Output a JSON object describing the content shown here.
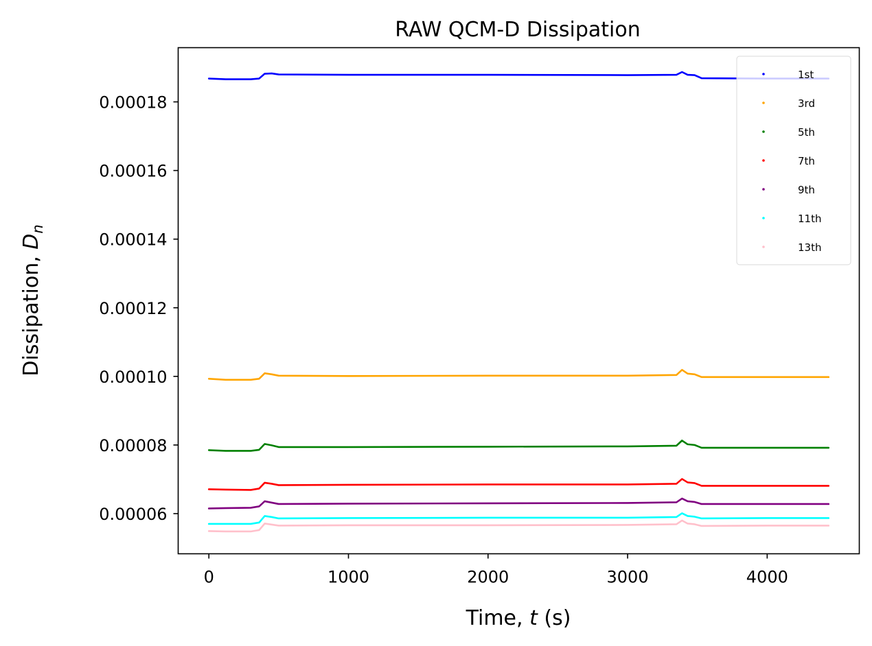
{
  "chart_data": {
    "type": "scatter",
    "title": "RAW QCM-D Dissipation",
    "xlabel": {
      "pre": "Time, ",
      "var": "t",
      "post": " (s)"
    },
    "ylabel": {
      "pre": "Dissipation, ",
      "var": "D",
      "sub": "n"
    },
    "xlim": [
      -220,
      4660
    ],
    "ylim": [
      4.83e-05,
      0.0001958
    ],
    "xticks": [
      0,
      1000,
      2000,
      3000,
      4000
    ],
    "xtick_labels": [
      "0",
      "1000",
      "2000",
      "3000",
      "4000"
    ],
    "yticks": [
      6e-05,
      8e-05,
      0.0001,
      0.00012,
      0.00014,
      0.00016,
      0.00018
    ],
    "ytick_labels": [
      "0.00006",
      "0.00008",
      "0.00010",
      "0.00012",
      "0.00014",
      "0.00016",
      "0.00018"
    ],
    "grid": false,
    "legend_position": "top-right",
    "series": [
      {
        "name": "1st",
        "color": "#0000ff",
        "x": [
          0,
          120,
          300,
          360,
          400,
          450,
          500,
          1000,
          2000,
          3000,
          3350,
          3390,
          3430,
          3480,
          3530,
          4000,
          4440
        ],
        "y": [
          0.0001868,
          0.0001866,
          0.0001866,
          0.0001868,
          0.0001882,
          0.0001883,
          0.000188,
          0.0001879,
          0.0001879,
          0.0001878,
          0.0001879,
          0.0001887,
          0.0001879,
          0.0001878,
          0.0001869,
          0.0001868,
          0.0001868
        ]
      },
      {
        "name": "3rd",
        "color": "#ffa500",
        "x": [
          0,
          120,
          300,
          360,
          400,
          450,
          500,
          1000,
          2000,
          3000,
          3350,
          3390,
          3430,
          3480,
          3530,
          4000,
          4440
        ],
        "y": [
          9.93e-05,
          9.9e-05,
          9.9e-05,
          9.93e-05,
          0.0001009,
          0.0001006,
          0.0001002,
          0.0001001,
          0.0001002,
          0.0001002,
          0.0001004,
          0.0001019,
          0.0001008,
          0.0001006,
          9.98e-05,
          9.98e-05,
          9.98e-05
        ]
      },
      {
        "name": "5th",
        "color": "#008000",
        "x": [
          0,
          120,
          300,
          360,
          400,
          450,
          500,
          1000,
          2000,
          3000,
          3350,
          3390,
          3430,
          3480,
          3530,
          4000,
          4440
        ],
        "y": [
          7.85e-05,
          7.83e-05,
          7.83e-05,
          7.86e-05,
          8.03e-05,
          7.99e-05,
          7.94e-05,
          7.94e-05,
          7.95e-05,
          7.96e-05,
          7.98e-05,
          8.13e-05,
          8.02e-05,
          8e-05,
          7.92e-05,
          7.92e-05,
          7.92e-05
        ]
      },
      {
        "name": "7th",
        "color": "#ff0000",
        "x": [
          0,
          120,
          300,
          360,
          400,
          450,
          500,
          1000,
          2000,
          3000,
          3350,
          3390,
          3430,
          3480,
          3530,
          4000,
          4440
        ],
        "y": [
          6.71e-05,
          6.7e-05,
          6.69e-05,
          6.73e-05,
          6.9e-05,
          6.87e-05,
          6.83e-05,
          6.84e-05,
          6.85e-05,
          6.85e-05,
          6.87e-05,
          7.01e-05,
          6.91e-05,
          6.89e-05,
          6.81e-05,
          6.81e-05,
          6.81e-05
        ]
      },
      {
        "name": "9th",
        "color": "#800080",
        "x": [
          0,
          120,
          300,
          360,
          400,
          450,
          500,
          1000,
          2000,
          3000,
          3350,
          3390,
          3430,
          3480,
          3530,
          4000,
          4440
        ],
        "y": [
          6.15e-05,
          6.16e-05,
          6.17e-05,
          6.21e-05,
          6.36e-05,
          6.32e-05,
          6.28e-05,
          6.29e-05,
          6.3e-05,
          6.31e-05,
          6.33e-05,
          6.44e-05,
          6.36e-05,
          6.34e-05,
          6.28e-05,
          6.28e-05,
          6.28e-05
        ]
      },
      {
        "name": "11th",
        "color": "#00ffff",
        "x": [
          0,
          120,
          300,
          360,
          400,
          450,
          500,
          1000,
          2000,
          3000,
          3350,
          3390,
          3430,
          3480,
          3530,
          4000,
          4440
        ],
        "y": [
          5.7e-05,
          5.7e-05,
          5.7e-05,
          5.74e-05,
          5.93e-05,
          5.9e-05,
          5.86e-05,
          5.87e-05,
          5.88e-05,
          5.88e-05,
          5.9e-05,
          6.01e-05,
          5.93e-05,
          5.91e-05,
          5.86e-05,
          5.87e-05,
          5.87e-05
        ]
      },
      {
        "name": "13th",
        "color": "#ffc0cb",
        "x": [
          0,
          120,
          300,
          360,
          400,
          450,
          500,
          1000,
          2000,
          3000,
          3350,
          3390,
          3430,
          3480,
          3530,
          4000,
          4440
        ],
        "y": [
          5.49e-05,
          5.48e-05,
          5.48e-05,
          5.52e-05,
          5.71e-05,
          5.68e-05,
          5.65e-05,
          5.66e-05,
          5.66e-05,
          5.67e-05,
          5.69e-05,
          5.8e-05,
          5.71e-05,
          5.69e-05,
          5.64e-05,
          5.65e-05,
          5.65e-05
        ]
      }
    ]
  }
}
